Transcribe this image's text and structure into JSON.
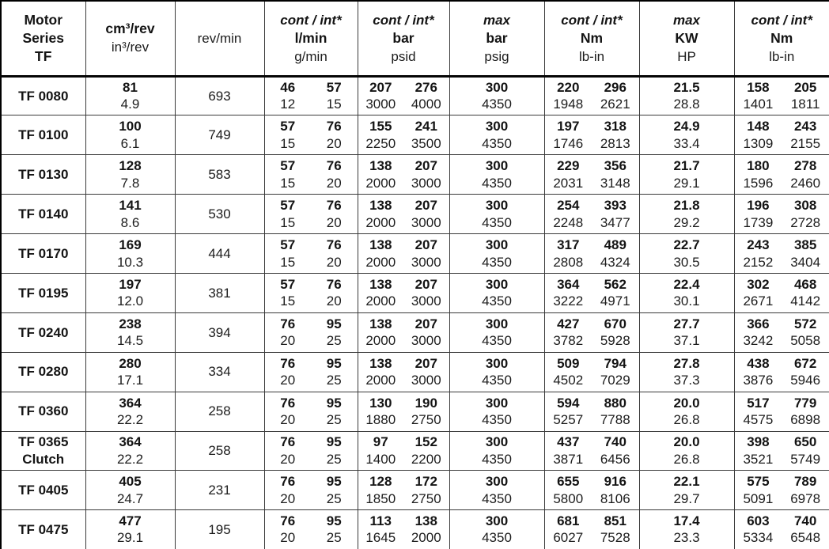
{
  "header": {
    "motor": [
      "Motor",
      "Series",
      "TF"
    ],
    "displacement": {
      "bold": "cm³/rev",
      "sub": "in³/rev"
    },
    "speed": "rev/min",
    "flow": {
      "tag": "cont / int*",
      "bold": "l/min",
      "sub": "g/min"
    },
    "pressure": {
      "tag": "cont / int*",
      "bold": "bar",
      "sub": "psid"
    },
    "max_pressure": {
      "tag": "max",
      "bold": "bar",
      "sub": "psig"
    },
    "torque": {
      "tag": "cont / int*",
      "bold": "Nm",
      "sub": "lb-in"
    },
    "max_power": {
      "tag": "max",
      "bold": "KW",
      "sub": "HP"
    },
    "max_torque": {
      "tag": "cont / int*",
      "bold": "Nm",
      "sub": "lb-in"
    }
  },
  "rows": [
    {
      "name_lines": [
        "TF 0080"
      ],
      "disp": {
        "t": "81",
        "b": "4.9"
      },
      "rpm": "693",
      "flow": {
        "a": "46",
        "b": "57",
        "c": "12",
        "d": "15"
      },
      "pressure": {
        "a": "207",
        "b": "276",
        "c": "3000",
        "d": "4000"
      },
      "max_pressure": {
        "t": "300",
        "b": "4350"
      },
      "torque": {
        "a": "220",
        "b": "296",
        "c": "1948",
        "d": "2621"
      },
      "max_power": {
        "t": "21.5",
        "b": "28.8"
      },
      "max_torque": {
        "a": "158",
        "b": "205",
        "c": "1401",
        "d": "1811"
      }
    },
    {
      "name_lines": [
        "TF 0100"
      ],
      "disp": {
        "t": "100",
        "b": "6.1"
      },
      "rpm": "749",
      "flow": {
        "a": "57",
        "b": "76",
        "c": "15",
        "d": "20"
      },
      "pressure": {
        "a": "155",
        "b": "241",
        "c": "2250",
        "d": "3500"
      },
      "max_pressure": {
        "t": "300",
        "b": "4350"
      },
      "torque": {
        "a": "197",
        "b": "318",
        "c": "1746",
        "d": "2813"
      },
      "max_power": {
        "t": "24.9",
        "b": "33.4"
      },
      "max_torque": {
        "a": "148",
        "b": "243",
        "c": "1309",
        "d": "2155"
      }
    },
    {
      "name_lines": [
        "TF 0130"
      ],
      "disp": {
        "t": "128",
        "b": "7.8"
      },
      "rpm": "583",
      "flow": {
        "a": "57",
        "b": "76",
        "c": "15",
        "d": "20"
      },
      "pressure": {
        "a": "138",
        "b": "207",
        "c": "2000",
        "d": "3000"
      },
      "max_pressure": {
        "t": "300",
        "b": "4350"
      },
      "torque": {
        "a": "229",
        "b": "356",
        "c": "2031",
        "d": "3148"
      },
      "max_power": {
        "t": "21.7",
        "b": "29.1"
      },
      "max_torque": {
        "a": "180",
        "b": "278",
        "c": "1596",
        "d": "2460"
      }
    },
    {
      "name_lines": [
        "TF 0140"
      ],
      "disp": {
        "t": "141",
        "b": "8.6"
      },
      "rpm": "530",
      "flow": {
        "a": "57",
        "b": "76",
        "c": "15",
        "d": "20"
      },
      "pressure": {
        "a": "138",
        "b": "207",
        "c": "2000",
        "d": "3000"
      },
      "max_pressure": {
        "t": "300",
        "b": "4350"
      },
      "torque": {
        "a": "254",
        "b": "393",
        "c": "2248",
        "d": "3477"
      },
      "max_power": {
        "t": "21.8",
        "b": "29.2"
      },
      "max_torque": {
        "a": "196",
        "b": "308",
        "c": "1739",
        "d": "2728"
      }
    },
    {
      "name_lines": [
        "TF 0170"
      ],
      "disp": {
        "t": "169",
        "b": "10.3"
      },
      "rpm": "444",
      "flow": {
        "a": "57",
        "b": "76",
        "c": "15",
        "d": "20"
      },
      "pressure": {
        "a": "138",
        "b": "207",
        "c": "2000",
        "d": "3000"
      },
      "max_pressure": {
        "t": "300",
        "b": "4350"
      },
      "torque": {
        "a": "317",
        "b": "489",
        "c": "2808",
        "d": "4324"
      },
      "max_power": {
        "t": "22.7",
        "b": "30.5"
      },
      "max_torque": {
        "a": "243",
        "b": "385",
        "c": "2152",
        "d": "3404"
      }
    },
    {
      "name_lines": [
        "TF 0195"
      ],
      "disp": {
        "t": "197",
        "b": "12.0"
      },
      "rpm": "381",
      "flow": {
        "a": "57",
        "b": "76",
        "c": "15",
        "d": "20"
      },
      "pressure": {
        "a": "138",
        "b": "207",
        "c": "2000",
        "d": "3000"
      },
      "max_pressure": {
        "t": "300",
        "b": "4350"
      },
      "torque": {
        "a": "364",
        "b": "562",
        "c": "3222",
        "d": "4971"
      },
      "max_power": {
        "t": "22.4",
        "b": "30.1"
      },
      "max_torque": {
        "a": "302",
        "b": "468",
        "c": "2671",
        "d": "4142"
      }
    },
    {
      "name_lines": [
        "TF 0240"
      ],
      "disp": {
        "t": "238",
        "b": "14.5"
      },
      "rpm": "394",
      "flow": {
        "a": "76",
        "b": "95",
        "c": "20",
        "d": "25"
      },
      "pressure": {
        "a": "138",
        "b": "207",
        "c": "2000",
        "d": "3000"
      },
      "max_pressure": {
        "t": "300",
        "b": "4350"
      },
      "torque": {
        "a": "427",
        "b": "670",
        "c": "3782",
        "d": "5928"
      },
      "max_power": {
        "t": "27.7",
        "b": "37.1"
      },
      "max_torque": {
        "a": "366",
        "b": "572",
        "c": "3242",
        "d": "5058"
      }
    },
    {
      "name_lines": [
        "TF 0280"
      ],
      "disp": {
        "t": "280",
        "b": "17.1"
      },
      "rpm": "334",
      "flow": {
        "a": "76",
        "b": "95",
        "c": "20",
        "d": "25"
      },
      "pressure": {
        "a": "138",
        "b": "207",
        "c": "2000",
        "d": "3000"
      },
      "max_pressure": {
        "t": "300",
        "b": "4350"
      },
      "torque": {
        "a": "509",
        "b": "794",
        "c": "4502",
        "d": "7029"
      },
      "max_power": {
        "t": "27.8",
        "b": "37.3"
      },
      "max_torque": {
        "a": "438",
        "b": "672",
        "c": "3876",
        "d": "5946"
      }
    },
    {
      "name_lines": [
        "TF 0360"
      ],
      "disp": {
        "t": "364",
        "b": "22.2"
      },
      "rpm": "258",
      "flow": {
        "a": "76",
        "b": "95",
        "c": "20",
        "d": "25"
      },
      "pressure": {
        "a": "130",
        "b": "190",
        "c": "1880",
        "d": "2750"
      },
      "max_pressure": {
        "t": "300",
        "b": "4350"
      },
      "torque": {
        "a": "594",
        "b": "880",
        "c": "5257",
        "d": "7788"
      },
      "max_power": {
        "t": "20.0",
        "b": "26.8"
      },
      "max_torque": {
        "a": "517",
        "b": "779",
        "c": "4575",
        "d": "6898"
      }
    },
    {
      "name_lines": [
        "TF 0365",
        "Clutch"
      ],
      "disp": {
        "t": "364",
        "b": "22.2"
      },
      "rpm": "258",
      "flow": {
        "a": "76",
        "b": "95",
        "c": "20",
        "d": "25"
      },
      "pressure": {
        "a": "97",
        "b": "152",
        "c": "1400",
        "d": "2200"
      },
      "max_pressure": {
        "t": "300",
        "b": "4350"
      },
      "torque": {
        "a": "437",
        "b": "740",
        "c": "3871",
        "d": "6456"
      },
      "max_power": {
        "t": "20.0",
        "b": "26.8"
      },
      "max_torque": {
        "a": "398",
        "b": "650",
        "c": "3521",
        "d": "5749"
      }
    },
    {
      "name_lines": [
        "TF 0405"
      ],
      "disp": {
        "t": "405",
        "b": "24.7"
      },
      "rpm": "231",
      "flow": {
        "a": "76",
        "b": "95",
        "c": "20",
        "d": "25"
      },
      "pressure": {
        "a": "128",
        "b": "172",
        "c": "1850",
        "d": "2750"
      },
      "max_pressure": {
        "t": "300",
        "b": "4350"
      },
      "torque": {
        "a": "655",
        "b": "916",
        "c": "5800",
        "d": "8106"
      },
      "max_power": {
        "t": "22.1",
        "b": "29.7"
      },
      "max_torque": {
        "a": "575",
        "b": "789",
        "c": "5091",
        "d": "6978"
      }
    },
    {
      "name_lines": [
        "TF 0475"
      ],
      "disp": {
        "t": "477",
        "b": "29.1"
      },
      "rpm": "195",
      "flow": {
        "a": "76",
        "b": "95",
        "c": "20",
        "d": "25"
      },
      "pressure": {
        "a": "113",
        "b": "138",
        "c": "1645",
        "d": "2000"
      },
      "max_pressure": {
        "t": "300",
        "b": "4350"
      },
      "torque": {
        "a": "681",
        "b": "851",
        "c": "6027",
        "d": "7528"
      },
      "max_power": {
        "t": "17.4",
        "b": "23.3"
      },
      "max_torque": {
        "a": "603",
        "b": "740",
        "c": "5334",
        "d": "6548"
      }
    }
  ],
  "chart_data": {
    "type": "table",
    "columns": [
      "Motor Series TF",
      "cm³/rev | in³/rev",
      "rev/min",
      "cont / int* l/min | g/min",
      "cont / int* bar | psid",
      "max bar | psig",
      "cont / int* Nm | lb-in",
      "max KW | HP",
      "cont / int* Nm | lb-in"
    ],
    "rows": [
      [
        "TF 0080",
        "81 | 4.9",
        "693",
        "46 / 57 | 12 / 15",
        "207 / 276 | 3000 / 4000",
        "300 | 4350",
        "220 / 296 | 1948 / 2621",
        "21.5 | 28.8",
        "158 / 205 | 1401 / 1811"
      ],
      [
        "TF 0100",
        "100 | 6.1",
        "749",
        "57 / 76 | 15 / 20",
        "155 / 241 | 2250 / 3500",
        "300 | 4350",
        "197 / 318 | 1746 / 2813",
        "24.9 | 33.4",
        "148 / 243 | 1309 / 2155"
      ],
      [
        "TF 0130",
        "128 | 7.8",
        "583",
        "57 / 76 | 15 / 20",
        "138 / 207 | 2000 / 3000",
        "300 | 4350",
        "229 / 356 | 2031 / 3148",
        "21.7 | 29.1",
        "180 / 278 | 1596 / 2460"
      ],
      [
        "TF 0140",
        "141 | 8.6",
        "530",
        "57 / 76 | 15 / 20",
        "138 / 207 | 2000 / 3000",
        "300 | 4350",
        "254 / 393 | 2248 / 3477",
        "21.8 | 29.2",
        "196 / 308 | 1739 / 2728"
      ],
      [
        "TF 0170",
        "169 | 10.3",
        "444",
        "57 / 76 | 15 / 20",
        "138 / 207 | 2000 / 3000",
        "300 | 4350",
        "317 / 489 | 2808 / 4324",
        "22.7 | 30.5",
        "243 / 385 | 2152 / 3404"
      ],
      [
        "TF 0195",
        "197 | 12.0",
        "381",
        "57 / 76 | 15 / 20",
        "138 / 207 | 2000 / 3000",
        "300 | 4350",
        "364 / 562 | 3222 / 4971",
        "22.4 | 30.1",
        "302 / 468 | 2671 / 4142"
      ],
      [
        "TF 0240",
        "238 | 14.5",
        "394",
        "76 / 95 | 20 / 25",
        "138 / 207 | 2000 / 3000",
        "300 | 4350",
        "427 / 670 | 3782 / 5928",
        "27.7 | 37.1",
        "366 / 572 | 3242 / 5058"
      ],
      [
        "TF 0280",
        "280 | 17.1",
        "334",
        "76 / 95 | 20 / 25",
        "138 / 207 | 2000 / 3000",
        "300 | 4350",
        "509 / 794 | 4502 / 7029",
        "27.8 | 37.3",
        "438 / 672 | 3876 / 5946"
      ],
      [
        "TF 0360",
        "364 | 22.2",
        "258",
        "76 / 95 | 20 / 25",
        "130 / 190 | 1880 / 2750",
        "300 | 4350",
        "594 / 880 | 5257 / 7788",
        "20.0 | 26.8",
        "517 / 779 | 4575 / 6898"
      ],
      [
        "TF 0365 Clutch",
        "364 | 22.2",
        "258",
        "76 / 95 | 20 / 25",
        "97 / 152 | 1400 / 2200",
        "300 | 4350",
        "437 / 740 | 3871 / 6456",
        "20.0 | 26.8",
        "398 / 650 | 3521 / 5749"
      ],
      [
        "TF 0405",
        "405 | 24.7",
        "231",
        "76 / 95 | 20 / 25",
        "128 / 172 | 1850 / 2750",
        "300 | 4350",
        "655 / 916 | 5800 / 8106",
        "22.1 | 29.7",
        "575 / 789 | 5091 / 6978"
      ],
      [
        "TF 0475",
        "477 | 29.1",
        "195",
        "76 / 95 | 20 / 25",
        "113 / 138 | 1645 / 2000",
        "300 | 4350",
        "681 / 851 | 6027 / 7528",
        "17.4 | 23.3",
        "603 / 740 | 5334 / 6548"
      ]
    ],
    "colors": {
      "text": "#161616",
      "grid": "#3a3a3a",
      "outer_border": "#000000",
      "background": "#ffffff"
    }
  }
}
